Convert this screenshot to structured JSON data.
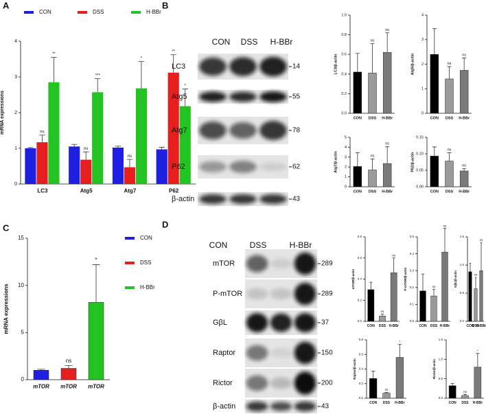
{
  "panels": [
    "A",
    "B",
    "C",
    "D"
  ],
  "chart_data": [
    {
      "type": "bar",
      "ylabel": "mRNA expressions",
      "categories": [
        "LC3",
        "Atg5",
        "Atg7",
        "P62"
      ],
      "series": [
        {
          "name": "CON",
          "color": "#1f1fe0",
          "values": [
            1.0,
            1.05,
            1.02,
            0.97
          ],
          "errors": [
            0.02,
            0.06,
            0.04,
            0.06
          ],
          "significance": [
            null,
            null,
            null,
            null
          ]
        },
        {
          "name": "DSS",
          "color": "#e61e1e",
          "values": [
            1.17,
            0.68,
            0.47,
            3.12
          ],
          "errors": [
            0.2,
            0.22,
            0.22,
            0.5
          ],
          "significance": [
            "ns",
            "ns",
            "ns",
            "**"
          ]
        },
        {
          "name": "H-BBr",
          "color": "#22c322",
          "values": [
            2.85,
            2.57,
            2.68,
            2.18
          ],
          "errors": [
            0.7,
            0.38,
            0.75,
            0.48
          ],
          "significance": [
            "**",
            "***",
            "*",
            "*"
          ]
        }
      ],
      "legend_position": "top",
      "ylim": [
        0,
        4
      ],
      "yticks": [
        0,
        1,
        2,
        3,
        4
      ]
    },
    {
      "type": "bar",
      "ylabel": "LC3/β-actin",
      "categories": [
        "CON",
        "DSS",
        "H-BBr"
      ],
      "values": [
        0.42,
        0.41,
        0.62
      ],
      "errors": [
        0.19,
        0.3,
        0.2
      ],
      "significance": [
        null,
        "ns",
        "ns"
      ],
      "colors": [
        "#000000",
        "#9a9a9a",
        "#7a7a7a"
      ],
      "ylim": [
        0,
        1.0
      ],
      "yticks": [
        {
          "value": 0,
          "label": "0.0"
        },
        0.2,
        0.4,
        0.6,
        0.8,
        {
          "value": 1.0,
          "label": "1.0"
        }
      ]
    },
    {
      "type": "bar",
      "ylabel": "Atg5/β-actin",
      "categories": [
        "CON",
        "DSS",
        "H-BBr"
      ],
      "values": [
        2.4,
        1.4,
        1.75
      ],
      "errors": [
        1.05,
        0.5,
        0.5
      ],
      "significance": [
        null,
        "ns",
        "ns"
      ],
      "colors": [
        "#000000",
        "#9a9a9a",
        "#7a7a7a"
      ],
      "ylim": [
        0,
        4
      ],
      "yticks": [
        0,
        1,
        2,
        3,
        4
      ]
    },
    {
      "type": "bar",
      "ylabel": "Atg7/β-actin",
      "categories": [
        "CON",
        "DSS",
        "H-BBr"
      ],
      "values": [
        2.05,
        1.7,
        2.35
      ],
      "errors": [
        1.4,
        1.1,
        1.7
      ],
      "significance": [
        null,
        "ns",
        "ns"
      ],
      "colors": [
        "#000000",
        "#9a9a9a",
        "#7a7a7a"
      ],
      "ylim": [
        0,
        5
      ],
      "yticks": [
        0,
        1,
        2,
        3,
        4,
        5
      ]
    },
    {
      "type": "bar",
      "ylabel": "P62/β-actin",
      "categories": [
        "CON",
        "DSS",
        "H-BBr"
      ],
      "values": [
        0.093,
        0.078,
        0.048
      ],
      "errors": [
        0.028,
        0.025,
        0.007
      ],
      "significance": [
        null,
        "ns",
        "ns"
      ],
      "colors": [
        "#000000",
        "#9a9a9a",
        "#7a7a7a"
      ],
      "ylim": [
        0,
        0.15
      ],
      "yticks": [
        {
          "value": 0,
          "label": "0.00"
        },
        0.05,
        {
          "value": 0.1,
          "label": "0.10"
        },
        0.15
      ]
    },
    {
      "type": "bar",
      "ylabel": "mRNA expressions",
      "categories": [
        "mTOR",
        "mTOR",
        "mTOR"
      ],
      "values": [
        1.0,
        1.2,
        8.2
      ],
      "errors": [
        0.1,
        0.3,
        4.0
      ],
      "significance": [
        null,
        "ns",
        "*"
      ],
      "colors": [
        "#1f1fe0",
        "#e61e1e",
        "#22c322"
      ],
      "legend": [
        "CON",
        "DSS",
        "H-BBr"
      ],
      "legend_position": "right",
      "ylim": [
        0,
        15
      ],
      "yticks": [
        0,
        5,
        10,
        15
      ]
    },
    {
      "type": "bar",
      "ylabel": "mTOR/β-actin",
      "categories": [
        "CON",
        "DSS",
        "H-BBr"
      ],
      "values": [
        0.3,
        0.05,
        0.46
      ],
      "errors": [
        0.07,
        0.02,
        0.14
      ],
      "significance": [
        null,
        "ns",
        "ns"
      ],
      "colors": [
        "#000000",
        "#9a9a9a",
        "#7a7a7a"
      ],
      "ylim": [
        0,
        0.8
      ],
      "yticks": [
        {
          "value": 0,
          "label": "0.0"
        },
        0.2,
        0.4,
        0.6,
        0.8
      ]
    },
    {
      "type": "bar",
      "ylabel": "P-mTOR/β-actin",
      "categories": [
        "CON",
        "DSS",
        "H-BBr"
      ],
      "values": [
        0.18,
        0.15,
        0.41
      ],
      "errors": [
        0.1,
        0.04,
        0.14
      ],
      "significance": [
        null,
        "ns",
        "ns"
      ],
      "colors": [
        "#000000",
        "#9a9a9a",
        "#7a7a7a"
      ],
      "ylim": [
        0,
        0.5
      ],
      "yticks": [
        {
          "value": 0,
          "label": "0.0"
        },
        0.1,
        0.2,
        0.3,
        0.4,
        0.5
      ]
    },
    {
      "type": "bar",
      "ylabel": "GβL/β-actin",
      "categories": [
        "CON",
        "DSS",
        "H-BBr"
      ],
      "values": [
        0.88,
        0.58,
        0.9
      ],
      "errors": [
        0.15,
        0.2,
        0.5
      ],
      "significance": [
        null,
        "ns",
        "ns"
      ],
      "colors": [
        "#000000",
        "#9a9a9a",
        "#7a7a7a"
      ],
      "ylim": [
        0,
        1.5
      ],
      "yticks": [
        {
          "value": 0,
          "label": "0.0"
        },
        0.5,
        {
          "value": 1.0,
          "label": "1.0"
        },
        1.5
      ]
    },
    {
      "type": "bar",
      "ylabel": "Raptor/β-actin",
      "categories": [
        "CON",
        "DSS",
        "H-BBr"
      ],
      "values": [
        0.27,
        0.07,
        0.56
      ],
      "errors": [
        0.1,
        0.01,
        0.18
      ],
      "significance": [
        null,
        "ns",
        "*"
      ],
      "colors": [
        "#000000",
        "#9a9a9a",
        "#7a7a7a"
      ],
      "ylim": [
        0,
        0.8
      ],
      "yticks": [
        {
          "value": 0,
          "label": "0.0"
        },
        0.2,
        0.4,
        0.6,
        0.8
      ]
    },
    {
      "type": "bar",
      "ylabel": "Rictor/β-actin",
      "categories": [
        "CON",
        "DSS",
        "H-BBr"
      ],
      "values": [
        0.32,
        0.07,
        0.8
      ],
      "errors": [
        0.06,
        0.03,
        0.35
      ],
      "significance": [
        null,
        "ns",
        "*"
      ],
      "colors": [
        "#000000",
        "#9a9a9a",
        "#7a7a7a"
      ],
      "ylim": [
        0,
        1.5
      ],
      "yticks": [
        {
          "value": 0,
          "label": "0.0"
        },
        0.5,
        {
          "value": 1.0,
          "label": "1.0"
        },
        1.5
      ]
    }
  ],
  "blots": [
    {
      "lanes": [
        "CON",
        "DSS",
        "H-BBr"
      ],
      "rows": [
        {
          "label": "LC3",
          "size": "14"
        },
        {
          "label": "Atg5",
          "size": "55"
        },
        {
          "label": "Atg7",
          "size": "78"
        },
        {
          "label": "P62",
          "size": "62"
        },
        {
          "label": "β-actin",
          "size": "43"
        }
      ]
    },
    {
      "lanes": [
        "CON",
        "DSS",
        "H-BBr"
      ],
      "rows": [
        {
          "label": "mTOR",
          "size": "289"
        },
        {
          "label": "P-mTOR",
          "size": "289"
        },
        {
          "label": "GβL",
          "size": "37"
        },
        {
          "label": "Raptor",
          "size": "150"
        },
        {
          "label": "Rictor",
          "size": "200"
        },
        {
          "label": "β-actin",
          "size": "43"
        }
      ]
    }
  ]
}
